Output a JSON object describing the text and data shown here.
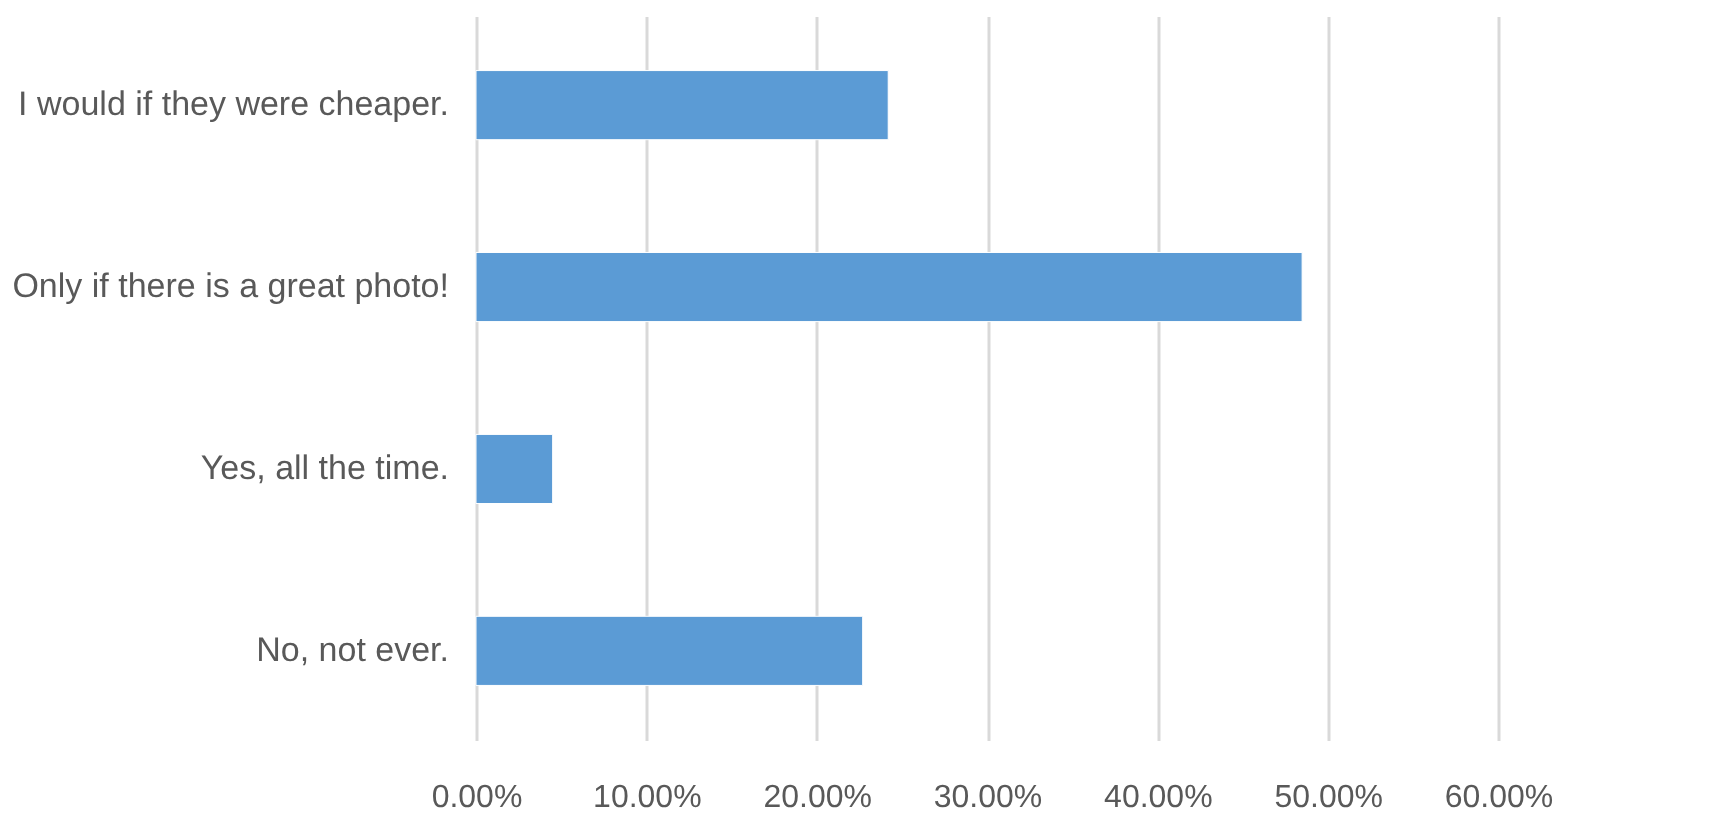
{
  "chart_data": {
    "type": "bar",
    "orientation": "horizontal",
    "categories": [
      "I would if they were cheaper.",
      "Only if there is a great photo!",
      "Yes, all the time.",
      "No, not ever."
    ],
    "values": [
      24.2,
      48.5,
      4.5,
      22.7
    ],
    "color": "#5b9bd5",
    "xlim": [
      0,
      60
    ],
    "xticks": [
      {
        "value": 0,
        "label": "0.00%"
      },
      {
        "value": 10,
        "label": "10.00%"
      },
      {
        "value": 20,
        "label": "20.00%"
      },
      {
        "value": 30,
        "label": "30.00%"
      },
      {
        "value": 40,
        "label": "40.00%"
      },
      {
        "value": 50,
        "label": "50.00%"
      },
      {
        "value": 60,
        "label": "60.00%"
      }
    ],
    "grid": "x"
  }
}
